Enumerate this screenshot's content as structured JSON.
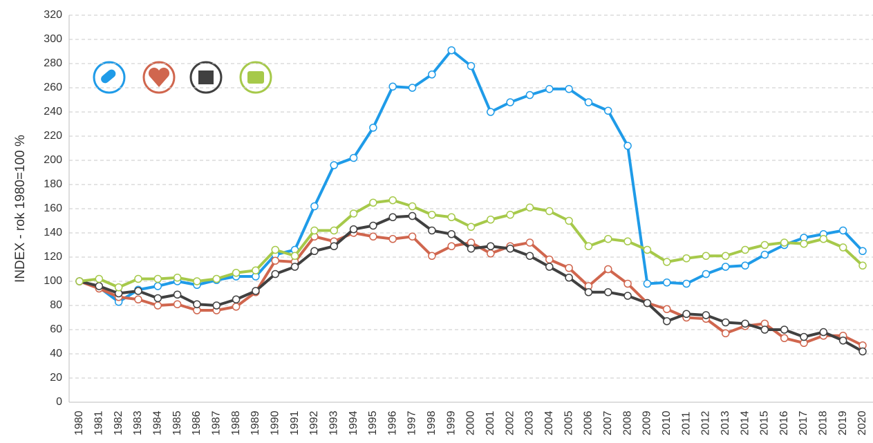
{
  "chart_data": {
    "type": "line",
    "y_label": "INDEX - rok 1980=100 %",
    "categories": [
      "1980",
      "1981",
      "1982",
      "1983",
      "1984",
      "1985",
      "1986",
      "1987",
      "1988",
      "1989",
      "1990",
      "1991",
      "1992",
      "1993",
      "1994",
      "1995",
      "1996",
      "1997",
      "1998",
      "1999",
      "2000",
      "2001",
      "2002",
      "2003",
      "2004",
      "2005",
      "2006",
      "2007",
      "2008",
      "2009",
      "2010",
      "2011",
      "2012",
      "2013",
      "2014",
      "2015",
      "2016",
      "2017",
      "2018",
      "2019",
      "2020"
    ],
    "series": [
      {
        "color": "#1f9be8",
        "values": [
          100,
          95,
          83,
          93,
          96,
          100,
          97,
          101,
          104,
          104,
          122,
          126,
          162,
          196,
          202,
          227,
          261,
          260,
          271,
          291,
          278,
          240,
          248,
          254,
          259,
          259,
          248,
          241,
          212,
          98,
          99,
          98,
          106,
          112,
          113,
          122,
          130,
          136,
          139,
          142,
          125
        ]
      },
      {
        "color": "#d0664e",
        "values": [
          100,
          94,
          87,
          85,
          80,
          81,
          76,
          76,
          79,
          91,
          117,
          116,
          137,
          133,
          140,
          137,
          135,
          137,
          121,
          129,
          132,
          123,
          129,
          132,
          118,
          111,
          96,
          110,
          98,
          82,
          77,
          70,
          69,
          57,
          63,
          65,
          53,
          49,
          55,
          55,
          47
        ]
      },
      {
        "color": "#404040",
        "values": [
          100,
          96,
          90,
          92,
          86,
          89,
          81,
          80,
          85,
          92,
          106,
          112,
          125,
          129,
          143,
          146,
          153,
          154,
          142,
          139,
          127,
          129,
          127,
          121,
          112,
          103,
          91,
          91,
          88,
          82,
          67,
          73,
          72,
          66,
          65,
          60,
          60,
          54,
          58,
          51,
          42
        ]
      },
      {
        "color": "#a6c94a",
        "values": [
          100,
          102,
          95,
          102,
          102,
          103,
          100,
          102,
          107,
          109,
          126,
          121,
          142,
          142,
          156,
          165,
          167,
          162,
          155,
          153,
          145,
          151,
          155,
          161,
          158,
          150,
          129,
          135,
          133,
          126,
          116,
          119,
          121,
          121,
          126,
          130,
          132,
          131,
          135,
          128,
          113
        ]
      }
    ],
    "ylim": [
      0,
      320
    ],
    "yticks": [
      0,
      20,
      40,
      60,
      80,
      100,
      120,
      140,
      160,
      180,
      200,
      220,
      240,
      260,
      280,
      300,
      320
    ],
    "grid": true
  }
}
